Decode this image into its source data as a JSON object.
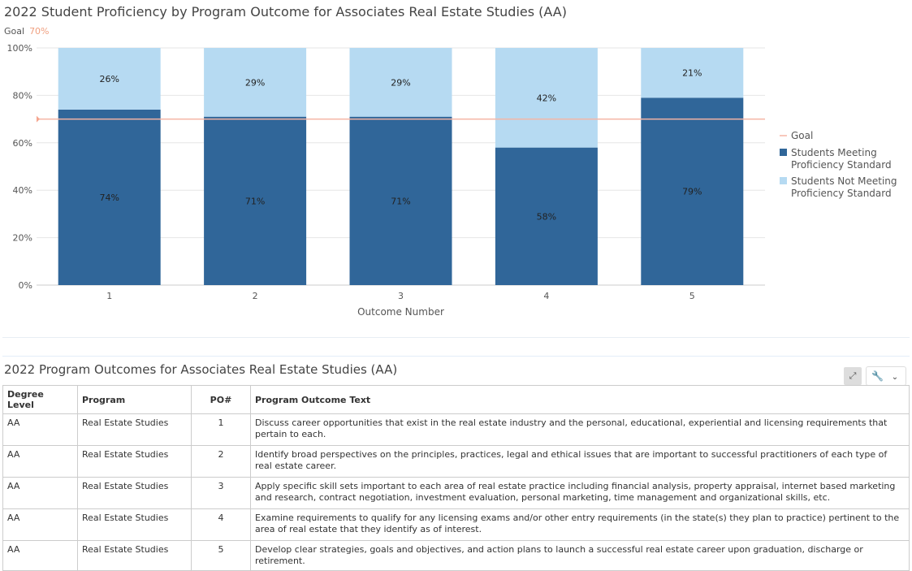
{
  "chart_data": {
    "type": "bar",
    "stacked": true,
    "title": "2022 Student Proficiency by Program Outcome for Associates Real Estate Studies (AA)",
    "goal_label": "Goal",
    "goal_value_label": "70%",
    "goal": 70,
    "xlabel": "Outcome Number",
    "ylabel": "",
    "ylim": [
      0,
      100
    ],
    "yticks": [
      "0%",
      "20%",
      "40%",
      "60%",
      "80%",
      "100%"
    ],
    "categories": [
      "1",
      "2",
      "3",
      "4",
      "5"
    ],
    "series": [
      {
        "name": "Students Meeting Proficiency Standard",
        "name_lines": [
          "Students Meeting",
          "Proficiency Standard"
        ],
        "color": "#306699",
        "values": [
          74,
          71,
          71,
          58,
          79
        ],
        "labels": [
          "74%",
          "71%",
          "71%",
          "58%",
          "79%"
        ]
      },
      {
        "name": "Students Not Meeting Proficiency Standard",
        "name_lines": [
          "Students Not Meeting",
          "Proficiency Standard"
        ],
        "color": "#b6daf2",
        "values": [
          26,
          29,
          29,
          42,
          21
        ],
        "labels": [
          "26%",
          "29%",
          "29%",
          "42%",
          "21%"
        ]
      }
    ],
    "legend": {
      "position": "right",
      "goal_entry": "Goal",
      "goal_color": "#f5b5a5"
    },
    "grid": true
  },
  "table": {
    "title": "2022 Program Outcomes for Associates Real Estate Studies (AA)",
    "headers": [
      "Degree Level",
      "Program",
      "PO#",
      "Program Outcome Text"
    ],
    "rows": [
      [
        "AA",
        "Real Estate Studies",
        "1",
        "Discuss career opportunities that exist in the real estate industry and the personal, educational, experiential and licensing requirements that pertain to each."
      ],
      [
        "AA",
        "Real Estate Studies",
        "2",
        "Identify broad perspectives on the principles, practices, legal and ethical issues that are important to successful practitioners of each type of real estate career."
      ],
      [
        "AA",
        "Real Estate Studies",
        "3",
        "Apply specific skill sets important to each area of real estate practice including financial analysis, property appraisal, internet based marketing and research, contract negotiation, investment evaluation, personal marketing, time management and organizational skills, etc."
      ],
      [
        "AA",
        "Real Estate Studies",
        "4",
        "Examine requirements to qualify for any licensing exams and/or other entry requirements (in the state(s) they plan to practice) pertinent to the area of real estate that they identify as of interest."
      ],
      [
        "AA",
        "Real Estate Studies",
        "5",
        "Develop clear strategies, goals and objectives, and action plans to launch a successful real estate career upon graduation, discharge or retirement."
      ]
    ]
  },
  "toolbar": {
    "expand_icon": "expand-icon",
    "wrench_icon": "wrench-icon",
    "chevron": "chevron-down-icon"
  }
}
